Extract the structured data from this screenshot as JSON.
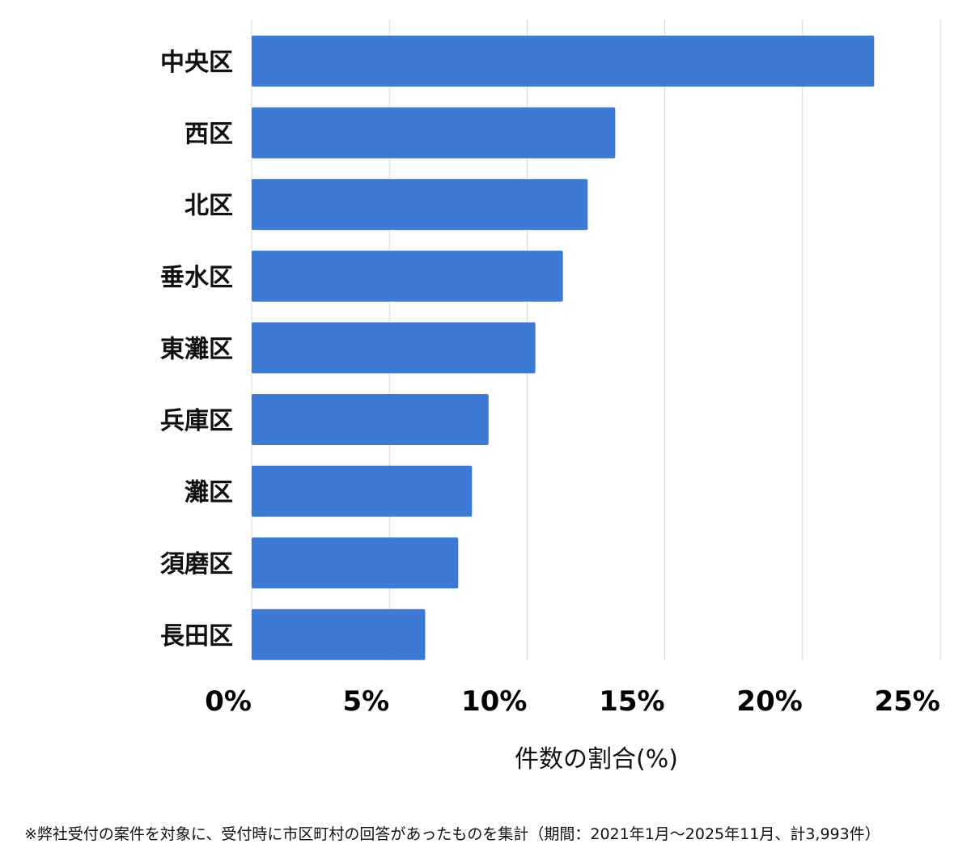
{
  "chart_data": {
    "type": "bar",
    "orientation": "horizontal",
    "categories": [
      "中央区",
      "西区",
      "北区",
      "垂水区",
      "東灘区",
      "兵庫区",
      "灘区",
      "須磨区",
      "長田区"
    ],
    "values": [
      22.6,
      13.2,
      12.2,
      11.3,
      10.3,
      8.6,
      8.0,
      7.5,
      6.3
    ],
    "xlabel": "件数の割合(%)",
    "ylabel": "",
    "xlim": [
      0,
      25
    ],
    "xticks": [
      "0%",
      "5%",
      "10%",
      "15%",
      "20%",
      "25%"
    ],
    "grid": true,
    "bar_color": "#3d7ad6"
  },
  "footnote": "※弊社受付の案件を対象に、受付時に市区町村の回答があったものを集計（期間：2021年1月～2025年11月、計3,993件）"
}
